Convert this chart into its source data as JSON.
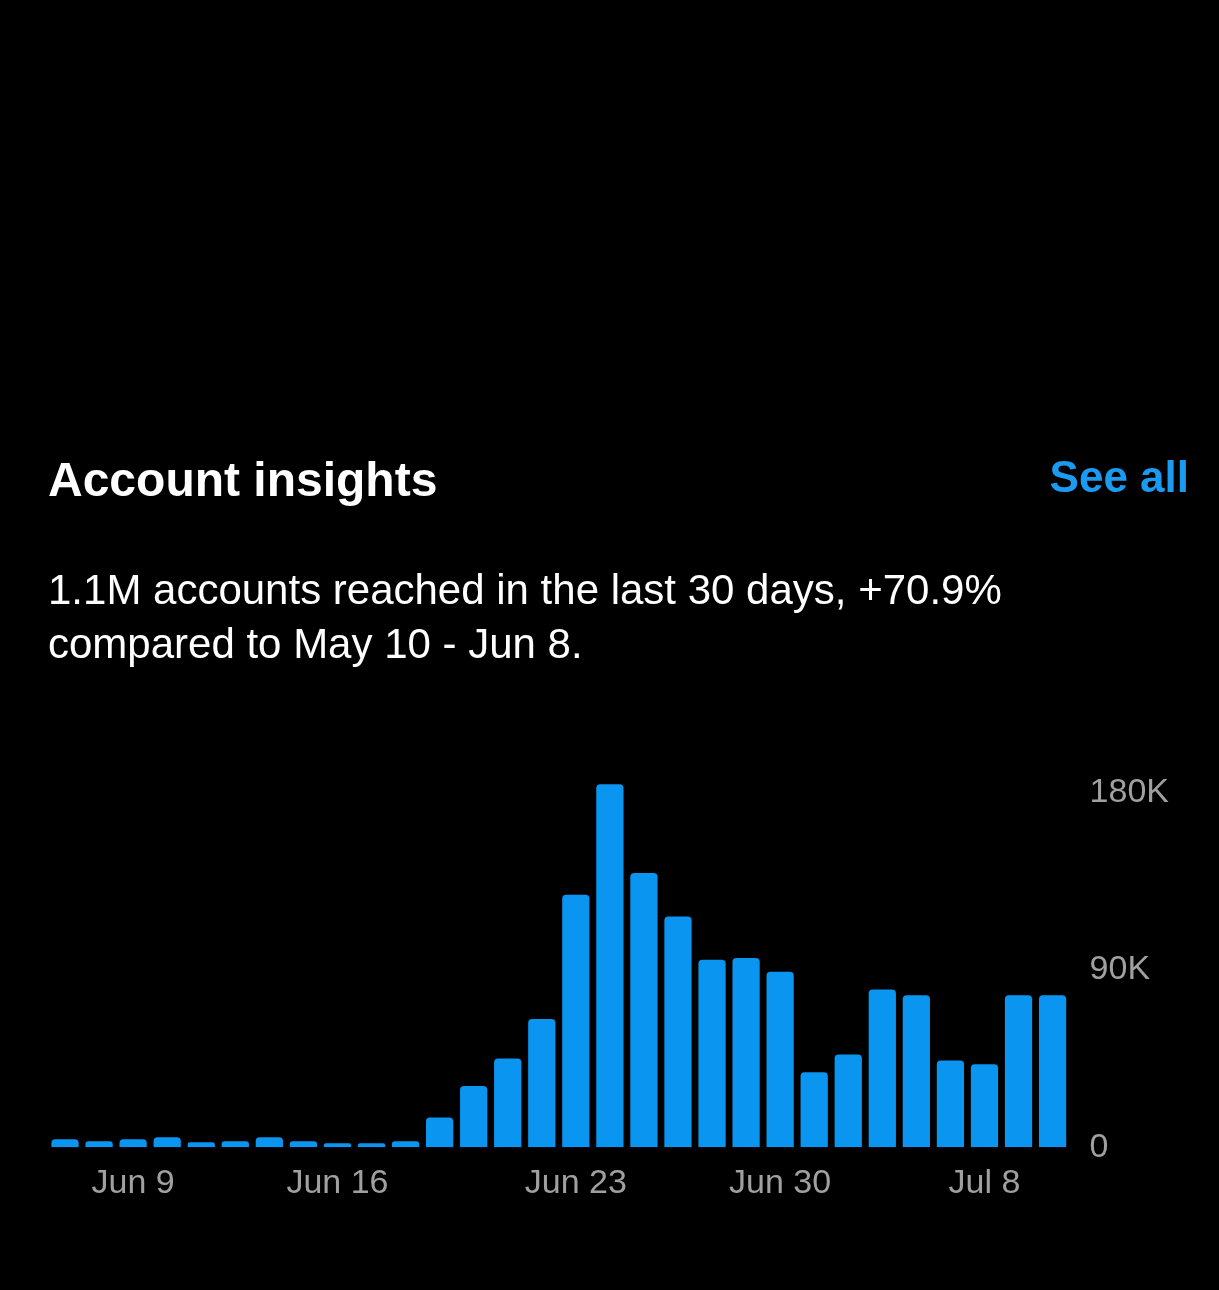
{
  "chart_data": {
    "type": "bar",
    "title": "Account insights",
    "subtitle": "1.1M accounts reached in the last 30 days, +70.9% compared to May 10 - Jun 8.",
    "annotations": [
      "See all"
    ],
    "categories": [
      null,
      null,
      "Jun 9",
      null,
      null,
      null,
      null,
      null,
      "Jun 16",
      null,
      null,
      null,
      null,
      null,
      null,
      "Jun 23",
      null,
      null,
      null,
      null,
      null,
      "Jun 30",
      null,
      null,
      null,
      null,
      null,
      "Jul 8",
      null,
      null
    ],
    "values": [
      4,
      3,
      4,
      5,
      2.5,
      3,
      5,
      3,
      2,
      2,
      3,
      15,
      31,
      45,
      65,
      128,
      184,
      139,
      117,
      95,
      96,
      89,
      38,
      47,
      80,
      77,
      44,
      42,
      77,
      77
    ],
    "color": "#0a95f0",
    "ylim": [
      0,
      186
    ],
    "yticks": [
      {
        "value": 0,
        "label": "0"
      },
      {
        "value": 90,
        "label": "90K"
      },
      {
        "value": 180,
        "label": "180K"
      }
    ],
    "grid": false,
    "legend": false
  }
}
